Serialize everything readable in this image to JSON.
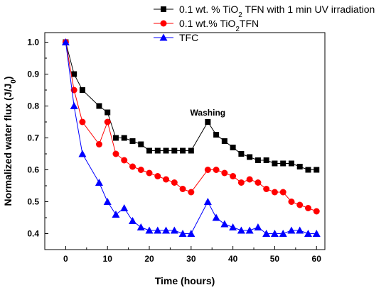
{
  "chart_data": {
    "type": "line",
    "xlabel": "Time (hours)",
    "ylabel": "Normalized water flux (J/J",
    "ylabel_sub": "0",
    "ylabel_close": ")",
    "xlim": [
      -5,
      62
    ],
    "ylim": [
      0.35,
      1.03
    ],
    "xticks": [
      0,
      10,
      20,
      30,
      40,
      50,
      60
    ],
    "yticks": [
      0.4,
      0.5,
      0.6,
      0.7,
      0.8,
      0.9,
      1.0
    ],
    "grid": false,
    "legend_position": "top-right",
    "annotations": [
      {
        "text": "Washing",
        "x": 34,
        "y": 0.77
      }
    ],
    "series": [
      {
        "name": "0.1 wt. % TiO",
        "name_sub": "2",
        "name_rest": " TFN with 1 min UV irradiation",
        "color": "#000000",
        "marker": "square",
        "x": [
          0,
          2,
          4,
          8,
          10,
          12,
          14,
          16,
          18,
          20,
          22,
          24,
          26,
          28,
          30,
          34,
          36,
          38,
          40,
          42,
          44,
          46,
          48,
          50,
          52,
          54,
          56,
          58,
          60
        ],
        "y": [
          1.0,
          0.9,
          0.85,
          0.8,
          0.78,
          0.7,
          0.7,
          0.69,
          0.68,
          0.66,
          0.66,
          0.66,
          0.66,
          0.66,
          0.66,
          0.75,
          0.71,
          0.69,
          0.67,
          0.65,
          0.64,
          0.63,
          0.63,
          0.62,
          0.62,
          0.62,
          0.61,
          0.6,
          0.6
        ]
      },
      {
        "name": "0.1 wt.% TiO",
        "name_sub": "2",
        "name_rest": "TFN",
        "color": "#ff0000",
        "marker": "circle",
        "x": [
          0,
          2,
          4,
          8,
          10,
          12,
          14,
          16,
          18,
          20,
          22,
          24,
          26,
          28,
          30,
          34,
          36,
          38,
          40,
          42,
          44,
          46,
          48,
          50,
          52,
          54,
          56,
          58,
          60
        ],
        "y": [
          1.0,
          0.85,
          0.75,
          0.68,
          0.75,
          0.65,
          0.63,
          0.61,
          0.6,
          0.59,
          0.58,
          0.57,
          0.56,
          0.54,
          0.53,
          0.6,
          0.6,
          0.59,
          0.58,
          0.56,
          0.57,
          0.56,
          0.54,
          0.53,
          0.53,
          0.5,
          0.49,
          0.48,
          0.47
        ]
      },
      {
        "name": "TFC",
        "name_sub": "",
        "name_rest": "",
        "color": "#0000ff",
        "marker": "triangle",
        "x": [
          0,
          2,
          4,
          8,
          10,
          12,
          14,
          16,
          18,
          20,
          22,
          24,
          26,
          28,
          30,
          34,
          36,
          38,
          40,
          42,
          44,
          46,
          48,
          50,
          52,
          54,
          56,
          58,
          60
        ],
        "y": [
          1.0,
          0.8,
          0.65,
          0.56,
          0.5,
          0.46,
          0.48,
          0.44,
          0.42,
          0.41,
          0.41,
          0.41,
          0.41,
          0.4,
          0.4,
          0.5,
          0.45,
          0.43,
          0.42,
          0.41,
          0.41,
          0.42,
          0.4,
          0.4,
          0.4,
          0.41,
          0.41,
          0.4,
          0.4
        ]
      }
    ]
  }
}
